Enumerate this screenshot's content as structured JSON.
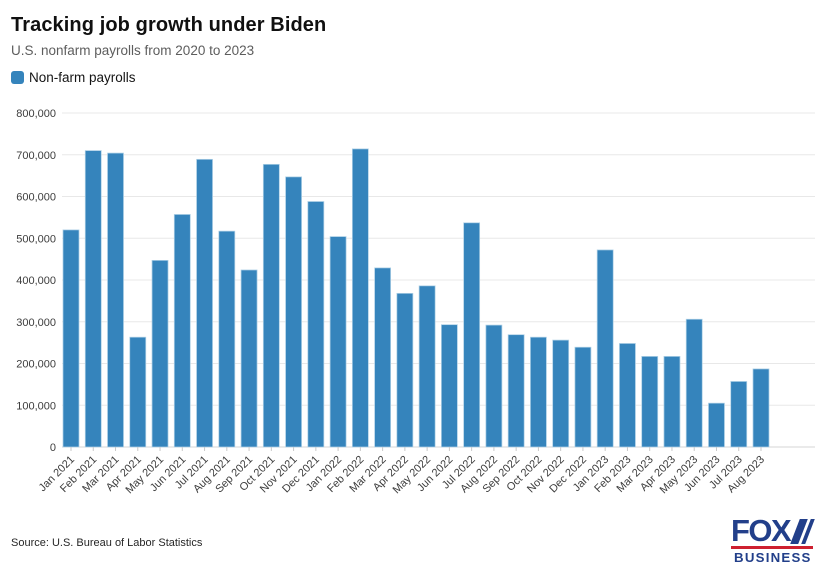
{
  "header": {
    "title": "Tracking job growth under Biden",
    "subtitle": "U.S. nonfarm payrolls from 2020 to 2023"
  },
  "legend": {
    "label": "Non-farm payrolls",
    "swatch_color": "#3584bc"
  },
  "chart_data": {
    "type": "bar",
    "title": "Tracking job growth under Biden",
    "subtitle": "U.S. nonfarm payrolls from 2020 to 2023",
    "series_name": "Non-farm payrolls",
    "categories": [
      "Jan 2021",
      "Feb 2021",
      "Mar 2021",
      "Apr 2021",
      "May 2021",
      "Jun 2021",
      "Jul 2021",
      "Aug 2021",
      "Sep 2021",
      "Oct 2021",
      "Nov 2021",
      "Dec 2021",
      "Jan 2022",
      "Feb 2022",
      "Mar 2022",
      "Apr 2022",
      "May 2022",
      "Jun 2022",
      "Jul 2022",
      "Aug 2022",
      "Sep 2022",
      "Oct 2022",
      "Nov 2022",
      "Dec 2022",
      "Jan 2023",
      "Feb 2023",
      "Mar 2023",
      "Apr 2023",
      "May 2023",
      "Jun 2023",
      "Jul 2023",
      "Aug 2023"
    ],
    "values": [
      520000,
      710000,
      704000,
      263000,
      447000,
      557000,
      689000,
      517000,
      424000,
      677000,
      647000,
      588000,
      504000,
      714000,
      429000,
      368000,
      386000,
      293000,
      537000,
      292000,
      269000,
      263000,
      256000,
      239000,
      472000,
      248000,
      217000,
      217000,
      306000,
      105000,
      157000,
      187000
    ],
    "ylim": [
      0,
      800000
    ],
    "ytick_step": 100000,
    "ytick_labels": [
      "0",
      "100,000",
      "200,000",
      "300,000",
      "400,000",
      "500,000",
      "600,000",
      "700,000",
      "800,000"
    ],
    "bar_color": "#3584bc",
    "bar_edge_color": "#aed0e6",
    "grid": true,
    "gridline_color": "#e8e8e8",
    "baseline_color": "#d6d6d6",
    "axis_label_color": "#3d3d3d",
    "legend_position": "top-left",
    "x_label_rotation": -45
  },
  "footer": {
    "source": "Source: U.S. Bureau of Labor Statistics",
    "logo_primary": "FOX",
    "logo_secondary": "BUSINESS",
    "logo_blue": "#223f8a",
    "logo_red": "#ce2030"
  }
}
